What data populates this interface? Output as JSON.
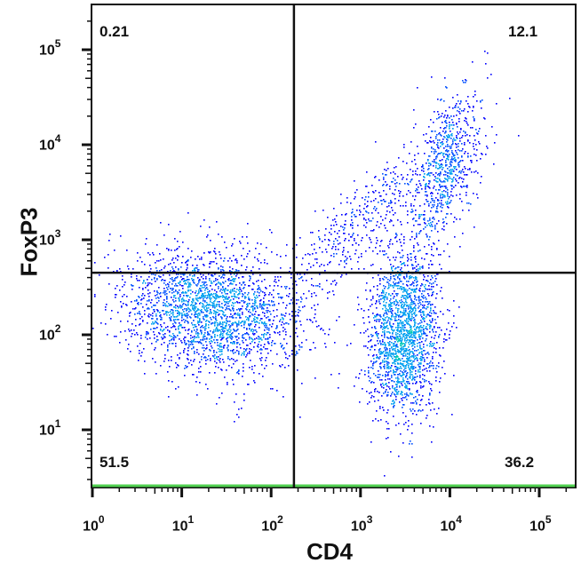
{
  "chart_data": {
    "type": "scatter",
    "subtype": "flow-cytometry-density-dot-plot",
    "xlabel": "CD4",
    "ylabel": "FoxP3",
    "x_scale": "log",
    "y_scale": "log",
    "xlim": [
      1,
      250000
    ],
    "ylim": [
      3,
      250000
    ],
    "x_ticks": [
      {
        "base": "10",
        "exp": "0"
      },
      {
        "base": "10",
        "exp": "1"
      },
      {
        "base": "10",
        "exp": "2"
      },
      {
        "base": "10",
        "exp": "3"
      },
      {
        "base": "10",
        "exp": "4"
      },
      {
        "base": "10",
        "exp": "5"
      }
    ],
    "y_ticks": [
      {
        "base": "10",
        "exp": "1"
      },
      {
        "base": "10",
        "exp": "2"
      },
      {
        "base": "10",
        "exp": "3"
      },
      {
        "base": "10",
        "exp": "4"
      },
      {
        "base": "10",
        "exp": "5"
      }
    ],
    "gate": {
      "x_threshold": 180,
      "y_threshold": 450
    },
    "quadrants": {
      "upper_left": "0.21",
      "upper_right": "12.1",
      "lower_left": "51.5",
      "lower_right": "36.2"
    },
    "populations": [
      {
        "center": [
          20,
          180
        ],
        "spread_decades": [
          0.5,
          0.33
        ],
        "corr": -0.2,
        "events": 2300
      },
      {
        "center": [
          3000,
          100
        ],
        "spread_decades": [
          0.2,
          0.42
        ],
        "corr": 0.1,
        "events": 1900
      },
      {
        "center": [
          9000,
          6000
        ],
        "spread_decades": [
          0.2,
          0.42
        ],
        "corr": 0.55,
        "events": 750
      },
      {
        "center": [
          1000,
          1500
        ],
        "spread_decades": [
          0.45,
          0.45
        ],
        "corr": 0.8,
        "events": 450
      }
    ],
    "density_colors": [
      "#0000ff",
      "#0050ff",
      "#00a0f0",
      "#00c8b4",
      "#20d070",
      "#90e040",
      "#f0c000"
    ],
    "grid": false,
    "legend": "none"
  }
}
